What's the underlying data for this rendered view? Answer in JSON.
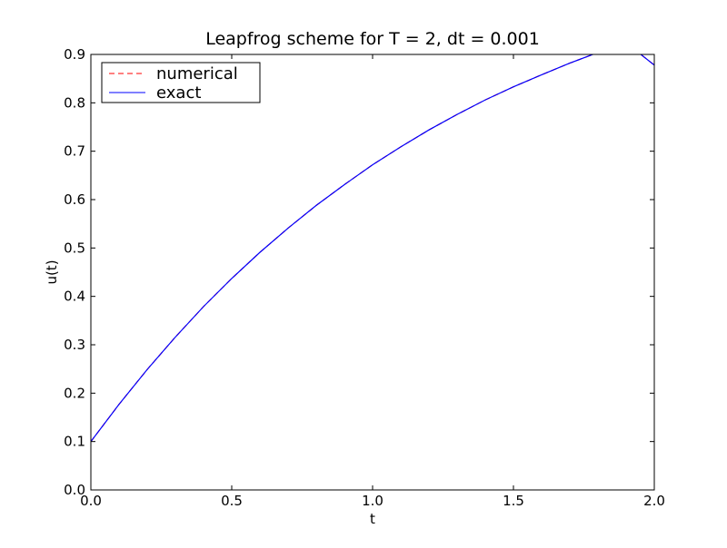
{
  "chart_data": {
    "type": "line",
    "title": "Leapfrog scheme for T = 2, dt = 0.001",
    "xlabel": "t",
    "ylabel": "u(t)",
    "xlim": [
      0.0,
      2.0
    ],
    "ylim": [
      0.0,
      0.9
    ],
    "xticks": [
      0.0,
      0.5,
      1.0,
      1.5,
      2.0
    ],
    "xtick_labels": [
      "0.0",
      "0.5",
      "1.0",
      "1.5",
      "2.0"
    ],
    "yticks": [
      0.0,
      0.1,
      0.2,
      0.3,
      0.4,
      0.5,
      0.6,
      0.7,
      0.8,
      0.9
    ],
    "ytick_labels": [
      "0.0",
      "0.1",
      "0.2",
      "0.3",
      "0.4",
      "0.5",
      "0.6",
      "0.7",
      "0.8",
      "0.9"
    ],
    "grid": false,
    "legend_position": "top-left",
    "x": [
      0.0,
      0.1,
      0.2,
      0.3,
      0.4,
      0.5,
      0.6,
      0.7,
      0.8,
      0.9,
      1.0,
      1.1,
      1.2,
      1.3,
      1.4,
      1.5,
      1.6,
      1.7,
      1.8,
      1.9,
      2.0
    ],
    "series": [
      {
        "name": "numerical",
        "color": "#ff0000",
        "style": "dashed",
        "values": [
          0.1,
          0.177,
          0.249,
          0.316,
          0.379,
          0.437,
          0.491,
          0.541,
          0.588,
          0.631,
          0.672,
          0.709,
          0.744,
          0.776,
          0.806,
          0.833,
          0.858,
          0.882,
          0.904,
          0.924,
          0.878
        ]
      },
      {
        "name": "exact",
        "color": "#0000ff",
        "style": "solid",
        "values": [
          0.1,
          0.177,
          0.249,
          0.316,
          0.379,
          0.437,
          0.491,
          0.541,
          0.588,
          0.631,
          0.672,
          0.709,
          0.744,
          0.776,
          0.806,
          0.833,
          0.858,
          0.882,
          0.904,
          0.924,
          0.878
        ]
      }
    ]
  }
}
